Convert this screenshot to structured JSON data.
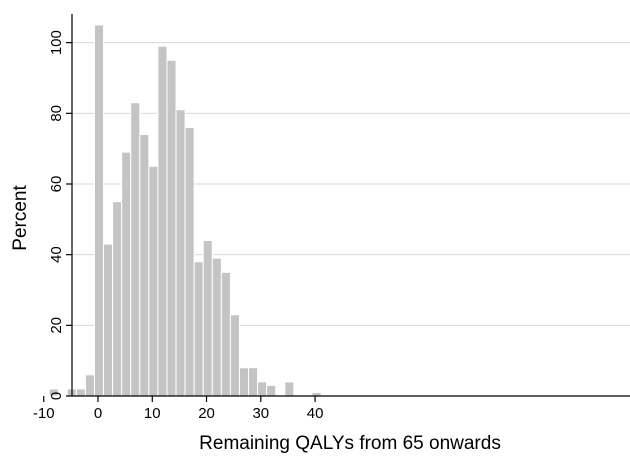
{
  "chart_data": {
    "type": "bar",
    "subtype": "histogram",
    "title": "",
    "xlabel": "Remaining QALYs from 65 onwards",
    "ylabel": "Percent",
    "xlim": [
      -11,
      41
    ],
    "ylim": [
      0,
      107
    ],
    "bin_width": 1.67,
    "x_ticks": [
      -10,
      0,
      10,
      20,
      30,
      40
    ],
    "y_ticks": [
      0,
      20,
      40,
      60,
      80,
      100
    ],
    "grid": "horizontal",
    "bar_color": "#c4c4c4",
    "bins": [
      {
        "x_start": -9.0,
        "value": 2
      },
      {
        "x_start": -7.33,
        "value": 0
      },
      {
        "x_start": -5.66,
        "value": 2
      },
      {
        "x_start": -3.99,
        "value": 2
      },
      {
        "x_start": -2.32,
        "value": 6
      },
      {
        "x_start": -0.65,
        "value": 105
      },
      {
        "x_start": 1.02,
        "value": 43
      },
      {
        "x_start": 2.69,
        "value": 55
      },
      {
        "x_start": 4.36,
        "value": 69
      },
      {
        "x_start": 6.03,
        "value": 83
      },
      {
        "x_start": 7.7,
        "value": 74
      },
      {
        "x_start": 9.37,
        "value": 65
      },
      {
        "x_start": 11.04,
        "value": 99
      },
      {
        "x_start": 12.71,
        "value": 95
      },
      {
        "x_start": 14.38,
        "value": 81
      },
      {
        "x_start": 16.05,
        "value": 76
      },
      {
        "x_start": 17.72,
        "value": 38
      },
      {
        "x_start": 19.39,
        "value": 44
      },
      {
        "x_start": 21.06,
        "value": 39
      },
      {
        "x_start": 22.73,
        "value": 35
      },
      {
        "x_start": 24.4,
        "value": 23
      },
      {
        "x_start": 26.07,
        "value": 8
      },
      {
        "x_start": 27.74,
        "value": 8
      },
      {
        "x_start": 29.41,
        "value": 4
      },
      {
        "x_start": 31.08,
        "value": 3
      },
      {
        "x_start": 32.75,
        "value": 0
      },
      {
        "x_start": 34.42,
        "value": 4
      },
      {
        "x_start": 36.09,
        "value": 0
      },
      {
        "x_start": 37.76,
        "value": 0
      },
      {
        "x_start": 39.43,
        "value": 1
      }
    ]
  }
}
